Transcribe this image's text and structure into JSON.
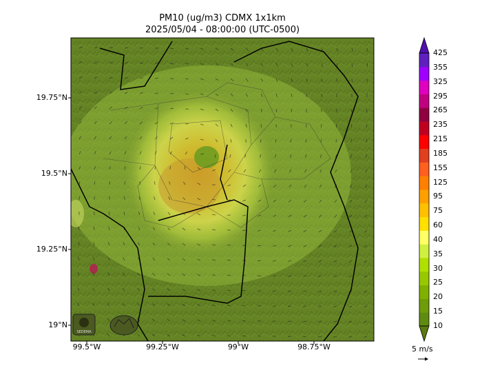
{
  "title_line1": "PM10 (ug/m3) CDMX 1x1km",
  "title_line2": "2025/05/04 - 08:00:00 (UTC-0500)",
  "y_ticks": [
    "19.75°N",
    "19.5°N",
    "19.25°N",
    "19°N"
  ],
  "x_ticks": [
    "99.5°W",
    "99.25°W",
    "99°W",
    "98.75°W"
  ],
  "colorbar": {
    "labels": [
      "10",
      "15",
      "20",
      "25",
      "30",
      "35",
      "40",
      "60",
      "75",
      "95",
      "125",
      "155",
      "185",
      "215",
      "235",
      "265",
      "295",
      "325",
      "355",
      "425"
    ],
    "colors": [
      "#5f8c10",
      "#6e9c0a",
      "#80b000",
      "#98c800",
      "#b0e000",
      "#d0f040",
      "#ffff66",
      "#ffe000",
      "#ffc000",
      "#ffa000",
      "#ff8000",
      "#ff6020",
      "#e04020",
      "#ff0000",
      "#c00020",
      "#900040",
      "#c00080",
      "#e000c0",
      "#a000ff",
      "#6020c0"
    ],
    "max_color": "#5010b0",
    "min_color": "#5a7a10"
  },
  "wind_scale_label": "5 m/s",
  "logos": [
    "sedema-logo",
    "government-seal-logo"
  ]
}
